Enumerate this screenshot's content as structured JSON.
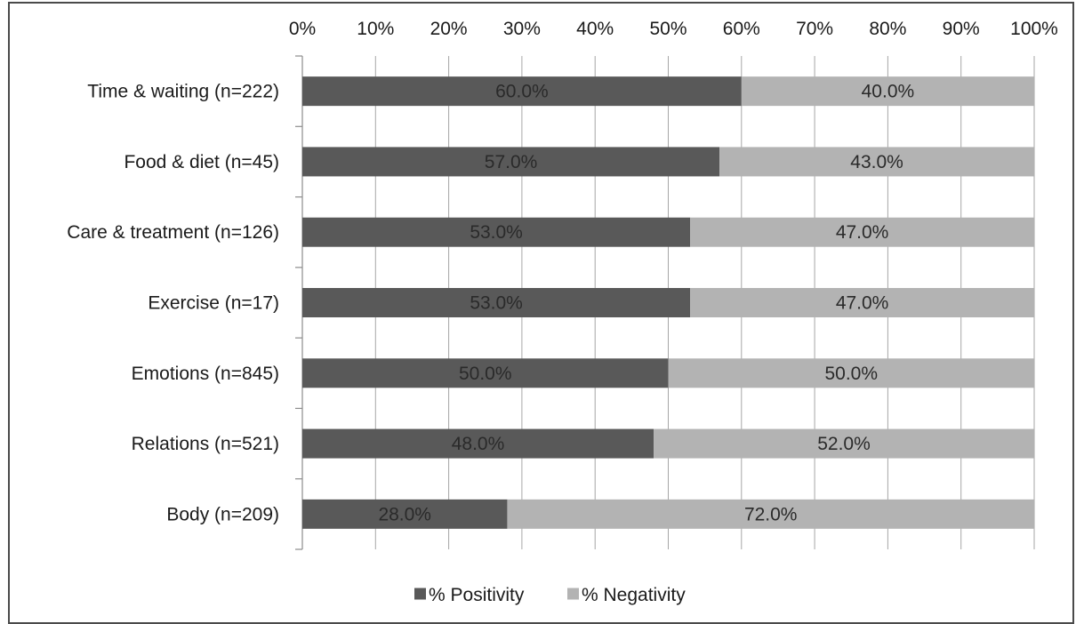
{
  "chart_data": {
    "type": "bar",
    "orientation": "horizontal",
    "stacked": "percent",
    "title": "",
    "xlabel": "",
    "ylabel": "",
    "xlim": [
      0,
      100
    ],
    "x_ticks": [
      "0%",
      "10%",
      "20%",
      "30%",
      "40%",
      "50%",
      "60%",
      "70%",
      "80%",
      "90%",
      "100%"
    ],
    "x_axis_position": "top",
    "grid": true,
    "legend_position": "bottom",
    "categories": [
      "Time & waiting (n=222)",
      "Food & diet (n=45)",
      "Care & treatment (n=126)",
      "Exercise (n=17)",
      "Emotions (n=845)",
      "Relations (n=521)",
      "Body (n=209)"
    ],
    "series": [
      {
        "name": "% Positivity",
        "color": "#595959",
        "values": [
          60.0,
          57.0,
          53.0,
          53.0,
          50.0,
          48.0,
          28.0
        ],
        "labels": [
          "60.0%",
          "57.0%",
          "53.0%",
          "53.0%",
          "50.0%",
          "48.0%",
          "28.0%"
        ]
      },
      {
        "name": "% Negativity",
        "color": "#b3b3b3",
        "values": [
          40.0,
          43.0,
          47.0,
          47.0,
          50.0,
          52.0,
          72.0
        ],
        "labels": [
          "40.0%",
          "43.0%",
          "47.0%",
          "47.0%",
          "50.0%",
          "52.0%",
          "72.0%"
        ]
      }
    ]
  }
}
